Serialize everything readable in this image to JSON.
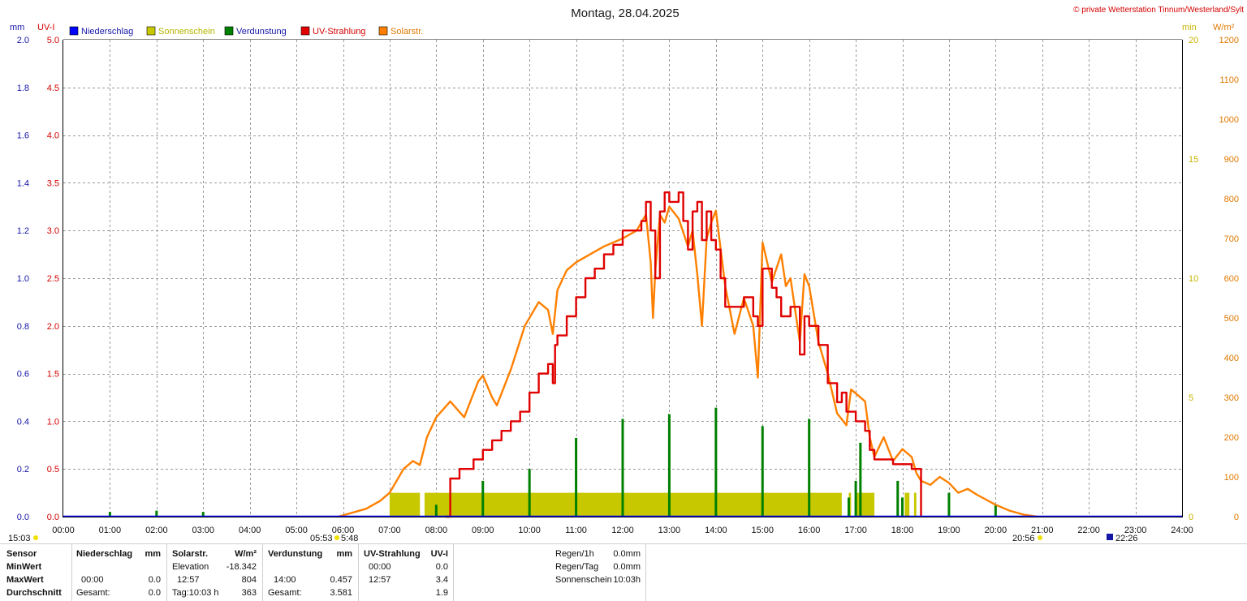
{
  "title": "Montag, 28.04.2025",
  "copyright": "© private Wetterstation Tinnum/Westerland/Sylt",
  "colors": {
    "niederschlag": "#0000ff",
    "sonnenschein": "#c8c800",
    "verdunstung": "#008000",
    "uv": "#e00000",
    "solar": "#ff8000",
    "grid": "#9a9a9a"
  },
  "axes": {
    "mm_unit": "mm",
    "uv_unit": "UV-I",
    "min_unit": "min",
    "w_unit": "W/m²",
    "mm_ticks": [
      "0.0",
      "0.2",
      "0.4",
      "0.6",
      "0.8",
      "1.0",
      "1.2",
      "1.4",
      "1.6",
      "1.8",
      "2.0"
    ],
    "uv_ticks": [
      "0.0",
      "0.5",
      "1.0",
      "1.5",
      "2.0",
      "2.5",
      "3.0",
      "3.5",
      "4.0",
      "4.5",
      "5.0"
    ],
    "min_ticks": [
      "0",
      "5",
      "10",
      "15",
      "20"
    ],
    "w_ticks": [
      "0",
      "100",
      "200",
      "300",
      "400",
      "500",
      "600",
      "700",
      "800",
      "900",
      "1000",
      "1100",
      "1200"
    ],
    "x_ticks": [
      "00:00",
      "01:00",
      "02:00",
      "03:00",
      "04:00",
      "05:00",
      "06:00",
      "07:00",
      "08:00",
      "09:00",
      "10:00",
      "11:00",
      "12:00",
      "13:00",
      "14:00",
      "15:00",
      "16:00",
      "17:00",
      "18:00",
      "19:00",
      "20:00",
      "21:00",
      "22:00",
      "23:00",
      "24:00"
    ]
  },
  "legend": [
    "Niederschlag",
    "Sonnenschein",
    "Verdunstung",
    "UV-Strahlung",
    "Solarstr."
  ],
  "markers": {
    "moon_set": "15:03",
    "sunrise": "05:53",
    "sunrise2": "5:48",
    "sunset": "20:56",
    "moon_rise": "22:26"
  },
  "table": {
    "row_labels": [
      "Sensor",
      "MinWert",
      "MaxWert",
      "Durchschnitt"
    ],
    "niederschlag": {
      "header": "Niederschlag",
      "unit": "mm",
      "max_time": "00:00",
      "max_val": "0.0",
      "total_label": "Gesamt:",
      "total_val": "0.0"
    },
    "solar": {
      "header": "Solarstr.",
      "unit": "W/m²",
      "min_label": "Elevation",
      "min_val": "-18.342",
      "max_time": "12:57",
      "max_val": "804",
      "avg_label": "Tag:10:03 h",
      "avg_val": "363"
    },
    "verdunstung": {
      "header": "Verdunstung",
      "unit": "mm",
      "max_time": "14:00",
      "max_val": "0.457",
      "total_label": "Gesamt:",
      "total_val": "3.581"
    },
    "uv": {
      "header": "UV-Strahlung",
      "unit": "UV-I",
      "min_time": "00:00",
      "min_val": "0.0",
      "max_time": "12:57",
      "max_val": "3.4",
      "avg_val": "1.9"
    },
    "rain": [
      {
        "label": "Regen/1h",
        "value": "0.0mm"
      },
      {
        "label": "Regen/Tag",
        "value": "0.0mm"
      },
      {
        "label": "Sonnenschein",
        "value": "10:03h"
      }
    ]
  },
  "chart_data": {
    "type": "line",
    "title": "Montag, 28.04.2025",
    "x_unit": "hour of day",
    "xlim": [
      0,
      24
    ],
    "series": [
      {
        "name": "Solarstr.",
        "axis": "W/m²",
        "ylim": [
          0,
          1200
        ],
        "x": [
          5.9,
          6.5,
          6.8,
          7.0,
          7.3,
          7.5,
          7.65,
          7.8,
          8.0,
          8.3,
          8.6,
          8.9,
          9.0,
          9.2,
          9.3,
          9.6,
          9.9,
          10.2,
          10.4,
          10.5,
          10.6,
          10.8,
          11.0,
          11.3,
          11.6,
          12.0,
          12.3,
          12.5,
          12.6,
          12.65,
          12.7,
          12.8,
          12.9,
          13.0,
          13.2,
          13.4,
          13.5,
          13.6,
          13.7,
          13.8,
          13.9,
          14.0,
          14.2,
          14.4,
          14.6,
          14.8,
          14.9,
          15.0,
          15.2,
          15.4,
          15.5,
          15.6,
          15.8,
          15.9,
          16.0,
          16.2,
          16.4,
          16.6,
          16.8,
          16.9,
          17.0,
          17.2,
          17.3,
          17.4,
          17.6,
          17.8,
          18.0,
          18.2,
          18.3,
          18.4,
          18.6,
          18.8,
          19.0,
          19.2,
          19.4,
          19.6,
          20.0,
          20.3,
          20.6,
          20.9
        ],
        "values": [
          0,
          20,
          40,
          60,
          120,
          140,
          130,
          200,
          250,
          290,
          250,
          340,
          355,
          300,
          280,
          370,
          480,
          540,
          520,
          460,
          570,
          620,
          640,
          660,
          680,
          700,
          720,
          760,
          640,
          500,
          620,
          760,
          740,
          780,
          750,
          680,
          720,
          610,
          480,
          700,
          740,
          770,
          580,
          460,
          550,
          480,
          350,
          690,
          590,
          660,
          580,
          600,
          440,
          610,
          580,
          440,
          360,
          260,
          230,
          320,
          310,
          290,
          200,
          150,
          200,
          140,
          170,
          150,
          110,
          90,
          80,
          100,
          85,
          60,
          70,
          55,
          30,
          15,
          5,
          0
        ]
      },
      {
        "name": "UV-Strahlung",
        "axis": "UV-I",
        "ylim": [
          0,
          5
        ],
        "x": [
          8.2,
          8.3,
          8.5,
          8.8,
          9.0,
          9.2,
          9.4,
          9.6,
          9.8,
          10.0,
          10.2,
          10.4,
          10.5,
          10.55,
          10.6,
          10.8,
          11.0,
          11.2,
          11.4,
          11.6,
          11.8,
          12.0,
          12.2,
          12.4,
          12.5,
          12.6,
          12.7,
          12.8,
          12.9,
          13.0,
          13.2,
          13.3,
          13.4,
          13.5,
          13.6,
          13.7,
          13.8,
          13.9,
          14.0,
          14.1,
          14.2,
          14.4,
          14.6,
          14.8,
          14.9,
          15.0,
          15.2,
          15.3,
          15.4,
          15.6,
          15.8,
          15.9,
          16.0,
          16.2,
          16.4,
          16.6,
          16.7,
          16.8,
          17.0,
          17.2,
          17.3,
          17.4,
          17.6,
          17.8,
          18.0,
          18.2,
          18.4
        ],
        "values": [
          0.0,
          0.4,
          0.5,
          0.6,
          0.7,
          0.8,
          0.9,
          1.0,
          1.1,
          1.3,
          1.5,
          1.6,
          1.4,
          1.8,
          1.9,
          2.1,
          2.3,
          2.5,
          2.6,
          2.75,
          2.85,
          3.0,
          3.0,
          3.1,
          3.3,
          3.0,
          2.5,
          3.2,
          3.4,
          3.3,
          3.4,
          3.1,
          2.8,
          3.2,
          3.3,
          2.9,
          3.2,
          2.9,
          2.8,
          2.5,
          2.2,
          2.2,
          2.3,
          2.1,
          2.0,
          2.6,
          2.4,
          2.3,
          2.1,
          2.2,
          1.7,
          2.1,
          2.0,
          1.8,
          1.4,
          1.2,
          1.3,
          1.1,
          1.0,
          0.9,
          0.7,
          0.6,
          0.6,
          0.55,
          0.55,
          0.5,
          0.0
        ]
      },
      {
        "name": "Verdunstung",
        "axis": "mm",
        "ylim": [
          0,
          2
        ],
        "x": [
          1.0,
          2.0,
          3.0,
          8.0,
          9.0,
          10.0,
          11.0,
          12.0,
          13.0,
          14.0,
          15.0,
          16.0,
          16.85,
          17.0,
          17.1,
          17.9,
          18.0,
          19.0,
          20.0
        ],
        "values": [
          0.02,
          0.025,
          0.02,
          0.05,
          0.15,
          0.2,
          0.33,
          0.41,
          0.43,
          0.457,
          0.38,
          0.41,
          0.08,
          0.15,
          0.31,
          0.15,
          0.08,
          0.1,
          0.05
        ]
      },
      {
        "name": "Sonnenschein",
        "axis": "min",
        "ylim": [
          0,
          20
        ],
        "x": [
          7.0,
          7.65,
          7.75,
          8.05,
          8.15,
          8.2,
          8.25,
          16.7,
          16.85,
          16.9,
          17.0,
          17.1,
          17.4,
          18.0,
          18.05,
          18.15,
          18.25,
          18.4
        ],
        "values": [
          1,
          1,
          1,
          1,
          1,
          1,
          1,
          1,
          1,
          1,
          1,
          1,
          1,
          1,
          1,
          1,
          1,
          1
        ]
      },
      {
        "name": "Niederschlag",
        "axis": "mm",
        "ylim": [
          0,
          2
        ],
        "x": [
          0,
          24
        ],
        "values": [
          0,
          0
        ]
      }
    ]
  }
}
